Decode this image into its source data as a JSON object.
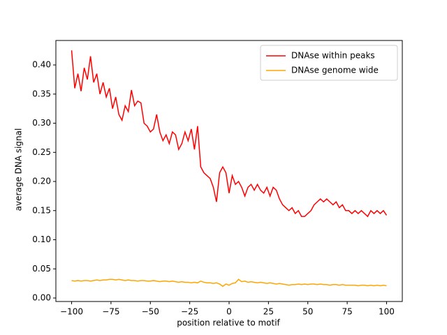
{
  "chart_data": {
    "type": "line",
    "xlabel": "position relative to motif",
    "ylabel": "average DNA signal",
    "x": [
      -100,
      -98,
      -96,
      -94,
      -92,
      -90,
      -88,
      -86,
      -84,
      -82,
      -80,
      -78,
      -76,
      -74,
      -72,
      -70,
      -68,
      -66,
      -64,
      -62,
      -60,
      -58,
      -56,
      -54,
      -52,
      -50,
      -48,
      -46,
      -44,
      -42,
      -40,
      -38,
      -36,
      -34,
      -32,
      -30,
      -28,
      -26,
      -24,
      -22,
      -20,
      -18,
      -16,
      -14,
      -12,
      -10,
      -8,
      -6,
      -4,
      -2,
      0,
      2,
      4,
      6,
      8,
      10,
      12,
      14,
      16,
      18,
      20,
      22,
      24,
      26,
      28,
      30,
      32,
      34,
      36,
      38,
      40,
      42,
      44,
      46,
      48,
      50,
      52,
      54,
      56,
      58,
      60,
      62,
      64,
      66,
      68,
      70,
      72,
      74,
      76,
      78,
      80,
      82,
      84,
      86,
      88,
      90,
      92,
      94,
      96,
      98,
      100
    ],
    "series": [
      {
        "name": "DNAse within peaks",
        "color": "#ff0000",
        "values": [
          0.425,
          0.36,
          0.385,
          0.355,
          0.395,
          0.375,
          0.415,
          0.37,
          0.385,
          0.35,
          0.37,
          0.345,
          0.36,
          0.325,
          0.345,
          0.315,
          0.305,
          0.33,
          0.32,
          0.357,
          0.33,
          0.338,
          0.335,
          0.3,
          0.295,
          0.285,
          0.29,
          0.315,
          0.285,
          0.27,
          0.28,
          0.265,
          0.285,
          0.28,
          0.255,
          0.265,
          0.285,
          0.27,
          0.29,
          0.255,
          0.295,
          0.225,
          0.215,
          0.21,
          0.205,
          0.19,
          0.165,
          0.215,
          0.225,
          0.215,
          0.18,
          0.21,
          0.195,
          0.2,
          0.19,
          0.175,
          0.19,
          0.195,
          0.185,
          0.195,
          0.185,
          0.18,
          0.19,
          0.175,
          0.19,
          0.185,
          0.17,
          0.16,
          0.155,
          0.15,
          0.155,
          0.145,
          0.15,
          0.14,
          0.14,
          0.145,
          0.15,
          0.16,
          0.165,
          0.17,
          0.165,
          0.17,
          0.165,
          0.16,
          0.165,
          0.155,
          0.16,
          0.15,
          0.15,
          0.145,
          0.15,
          0.145,
          0.15,
          0.145,
          0.14,
          0.15,
          0.145,
          0.15,
          0.145,
          0.15,
          0.142
        ]
      },
      {
        "name": "DNAse genome wide",
        "color": "#ffa500",
        "values": [
          0.03,
          0.029,
          0.03,
          0.029,
          0.03,
          0.03,
          0.029,
          0.03,
          0.031,
          0.03,
          0.031,
          0.031,
          0.032,
          0.032,
          0.031,
          0.032,
          0.031,
          0.03,
          0.031,
          0.03,
          0.03,
          0.029,
          0.03,
          0.03,
          0.029,
          0.029,
          0.03,
          0.029,
          0.028,
          0.029,
          0.029,
          0.028,
          0.029,
          0.028,
          0.027,
          0.028,
          0.027,
          0.027,
          0.026,
          0.027,
          0.026,
          0.029,
          0.027,
          0.026,
          0.026,
          0.025,
          0.026,
          0.024,
          0.02,
          0.024,
          0.022,
          0.025,
          0.026,
          0.032,
          0.028,
          0.029,
          0.027,
          0.028,
          0.027,
          0.026,
          0.027,
          0.026,
          0.025,
          0.026,
          0.025,
          0.024,
          0.025,
          0.024,
          0.023,
          0.022,
          0.023,
          0.023,
          0.024,
          0.023,
          0.024,
          0.023,
          0.024,
          0.024,
          0.023,
          0.024,
          0.023,
          0.023,
          0.022,
          0.023,
          0.023,
          0.022,
          0.023,
          0.022,
          0.022,
          0.022,
          0.022,
          0.021,
          0.022,
          0.022,
          0.021,
          0.022,
          0.021,
          0.022,
          0.021,
          0.022,
          0.021
        ]
      }
    ],
    "xlim": [
      -110,
      110
    ],
    "ylim": [
      -0.006,
      0.442
    ],
    "xticks": [
      {
        "value": -100,
        "label": "−100"
      },
      {
        "value": -75,
        "label": "−75"
      },
      {
        "value": -50,
        "label": "−50"
      },
      {
        "value": -25,
        "label": "−25"
      },
      0,
      25,
      50,
      75,
      100
    ],
    "yticks": [
      {
        "value": 0,
        "label": "0.00"
      },
      0.05,
      {
        "value": 0.1,
        "label": "0.10"
      },
      0.15,
      {
        "value": 0.2,
        "label": "0.20"
      },
      0.25,
      {
        "value": 0.3,
        "label": "0.30"
      },
      0.35,
      {
        "value": 0.4,
        "label": "0.40"
      }
    ],
    "legend": "upper right"
  }
}
